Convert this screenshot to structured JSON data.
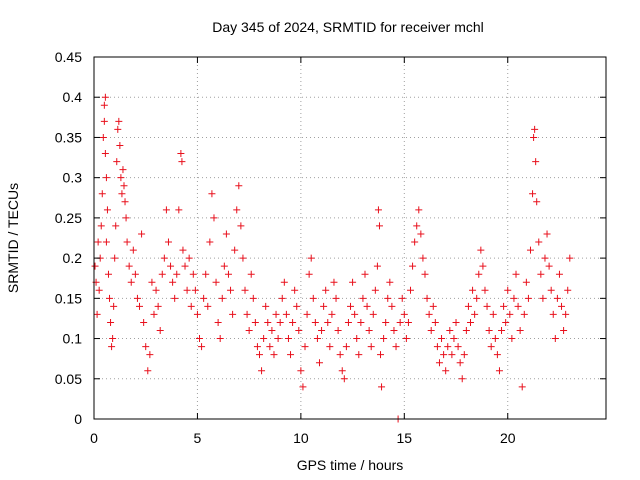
{
  "chart_data": {
    "type": "scatter",
    "title": "Day 345 of 2024, SRMTID for receiver mchl",
    "xlabel": "GPS time / hours",
    "ylabel": "SRMTID / TECUs",
    "xlim": [
      0,
      24.75
    ],
    "ylim": [
      0,
      0.45
    ],
    "xticks": [
      0,
      5,
      10,
      15,
      20
    ],
    "xtick_labels": [
      "0",
      "5",
      "10",
      "15",
      "20"
    ],
    "yticks": [
      0,
      0.05,
      0.1,
      0.15,
      0.2,
      0.25,
      0.3,
      0.35,
      0.4,
      0.45
    ],
    "ytick_labels": [
      "0",
      "0.05",
      "0.1",
      "0.15",
      "0.2",
      "0.25",
      "0.3",
      "0.35",
      "0.4",
      "0.45"
    ],
    "grid": true,
    "marker": "plus",
    "color": "#e8101c",
    "series": [
      {
        "name": "SRMTID",
        "points": [
          [
            0.05,
            0.19
          ],
          [
            0.1,
            0.17
          ],
          [
            0.15,
            0.13
          ],
          [
            0.2,
            0.22
          ],
          [
            0.25,
            0.16
          ],
          [
            0.3,
            0.2
          ],
          [
            0.35,
            0.24
          ],
          [
            0.4,
            0.28
          ],
          [
            0.45,
            0.35
          ],
          [
            0.5,
            0.37
          ],
          [
            0.5,
            0.39
          ],
          [
            0.55,
            0.4
          ],
          [
            0.55,
            0.33
          ],
          [
            0.6,
            0.3
          ],
          [
            0.6,
            0.22
          ],
          [
            0.65,
            0.26
          ],
          [
            0.7,
            0.18
          ],
          [
            0.75,
            0.15
          ],
          [
            0.8,
            0.12
          ],
          [
            0.85,
            0.09
          ],
          [
            0.9,
            0.1
          ],
          [
            0.95,
            0.14
          ],
          [
            1.0,
            0.2
          ],
          [
            1.05,
            0.24
          ],
          [
            1.1,
            0.32
          ],
          [
            1.15,
            0.36
          ],
          [
            1.2,
            0.37
          ],
          [
            1.25,
            0.34
          ],
          [
            1.3,
            0.3
          ],
          [
            1.35,
            0.28
          ],
          [
            1.4,
            0.31
          ],
          [
            1.45,
            0.29
          ],
          [
            1.5,
            0.27
          ],
          [
            1.55,
            0.25
          ],
          [
            1.6,
            0.22
          ],
          [
            1.7,
            0.19
          ],
          [
            1.8,
            0.17
          ],
          [
            1.9,
            0.21
          ],
          [
            2.0,
            0.18
          ],
          [
            2.1,
            0.15
          ],
          [
            2.2,
            0.14
          ],
          [
            2.3,
            0.23
          ],
          [
            2.4,
            0.12
          ],
          [
            2.5,
            0.09
          ],
          [
            2.6,
            0.06
          ],
          [
            2.7,
            0.08
          ],
          [
            2.8,
            0.17
          ],
          [
            2.9,
            0.13
          ],
          [
            3.0,
            0.16
          ],
          [
            3.1,
            0.14
          ],
          [
            3.2,
            0.11
          ],
          [
            3.3,
            0.18
          ],
          [
            3.4,
            0.2
          ],
          [
            3.5,
            0.26
          ],
          [
            3.6,
            0.22
          ],
          [
            3.7,
            0.19
          ],
          [
            3.8,
            0.17
          ],
          [
            3.9,
            0.15
          ],
          [
            4.0,
            0.18
          ],
          [
            4.1,
            0.26
          ],
          [
            4.2,
            0.33
          ],
          [
            4.25,
            0.32
          ],
          [
            4.3,
            0.21
          ],
          [
            4.4,
            0.19
          ],
          [
            4.5,
            0.16
          ],
          [
            4.6,
            0.2
          ],
          [
            4.7,
            0.14
          ],
          [
            4.8,
            0.18
          ],
          [
            4.9,
            0.16
          ],
          [
            5.0,
            0.13
          ],
          [
            5.1,
            0.1
          ],
          [
            5.2,
            0.09
          ],
          [
            5.3,
            0.15
          ],
          [
            5.4,
            0.18
          ],
          [
            5.5,
            0.14
          ],
          [
            5.6,
            0.22
          ],
          [
            5.7,
            0.28
          ],
          [
            5.8,
            0.25
          ],
          [
            5.9,
            0.17
          ],
          [
            6.0,
            0.12
          ],
          [
            6.1,
            0.1
          ],
          [
            6.2,
            0.15
          ],
          [
            6.3,
            0.19
          ],
          [
            6.4,
            0.23
          ],
          [
            6.5,
            0.18
          ],
          [
            6.6,
            0.16
          ],
          [
            6.7,
            0.13
          ],
          [
            6.8,
            0.21
          ],
          [
            6.9,
            0.26
          ],
          [
            7.0,
            0.29
          ],
          [
            7.1,
            0.24
          ],
          [
            7.2,
            0.2
          ],
          [
            7.3,
            0.16
          ],
          [
            7.4,
            0.13
          ],
          [
            7.5,
            0.11
          ],
          [
            7.6,
            0.18
          ],
          [
            7.7,
            0.15
          ],
          [
            7.8,
            0.12
          ],
          [
            7.9,
            0.09
          ],
          [
            8.0,
            0.08
          ],
          [
            8.1,
            0.06
          ],
          [
            8.2,
            0.1
          ],
          [
            8.3,
            0.14
          ],
          [
            8.4,
            0.12
          ],
          [
            8.5,
            0.09
          ],
          [
            8.6,
            0.11
          ],
          [
            8.7,
            0.08
          ],
          [
            8.8,
            0.13
          ],
          [
            8.9,
            0.1
          ],
          [
            9.0,
            0.12
          ],
          [
            9.1,
            0.15
          ],
          [
            9.2,
            0.17
          ],
          [
            9.3,
            0.13
          ],
          [
            9.4,
            0.1
          ],
          [
            9.5,
            0.08
          ],
          [
            9.6,
            0.12
          ],
          [
            9.7,
            0.16
          ],
          [
            9.8,
            0.14
          ],
          [
            9.9,
            0.11
          ],
          [
            10.0,
            0.06
          ],
          [
            10.1,
            0.04
          ],
          [
            10.2,
            0.09
          ],
          [
            10.3,
            0.13
          ],
          [
            10.4,
            0.18
          ],
          [
            10.5,
            0.2
          ],
          [
            10.6,
            0.15
          ],
          [
            10.7,
            0.12
          ],
          [
            10.8,
            0.1
          ],
          [
            10.9,
            0.07
          ],
          [
            11.0,
            0.11
          ],
          [
            11.1,
            0.14
          ],
          [
            11.2,
            0.16
          ],
          [
            11.3,
            0.12
          ],
          [
            11.4,
            0.09
          ],
          [
            11.5,
            0.13
          ],
          [
            11.6,
            0.17
          ],
          [
            11.7,
            0.15
          ],
          [
            11.8,
            0.11
          ],
          [
            11.9,
            0.08
          ],
          [
            12.0,
            0.06
          ],
          [
            12.1,
            0.05
          ],
          [
            12.2,
            0.09
          ],
          [
            12.3,
            0.12
          ],
          [
            12.4,
            0.14
          ],
          [
            12.5,
            0.17
          ],
          [
            12.6,
            0.13
          ],
          [
            12.7,
            0.1
          ],
          [
            12.8,
            0.08
          ],
          [
            12.9,
            0.12
          ],
          [
            13.0,
            0.15
          ],
          [
            13.1,
            0.18
          ],
          [
            13.2,
            0.14
          ],
          [
            13.3,
            0.11
          ],
          [
            13.4,
            0.09
          ],
          [
            13.5,
            0.13
          ],
          [
            13.6,
            0.16
          ],
          [
            13.7,
            0.19
          ],
          [
            13.75,
            0.26
          ],
          [
            13.8,
            0.24
          ],
          [
            13.85,
            0.08
          ],
          [
            13.9,
            0.04
          ],
          [
            14.0,
            0.1
          ],
          [
            14.1,
            0.12
          ],
          [
            14.2,
            0.15
          ],
          [
            14.3,
            0.17
          ],
          [
            14.4,
            0.14
          ],
          [
            14.5,
            0.11
          ],
          [
            14.6,
            0.09
          ],
          [
            14.7,
            0.0
          ],
          [
            14.8,
            0.12
          ],
          [
            14.9,
            0.15
          ],
          [
            15.0,
            0.13
          ],
          [
            15.1,
            0.1
          ],
          [
            15.2,
            0.12
          ],
          [
            15.3,
            0.16
          ],
          [
            15.4,
            0.19
          ],
          [
            15.5,
            0.22
          ],
          [
            15.6,
            0.24
          ],
          [
            15.7,
            0.26
          ],
          [
            15.8,
            0.23
          ],
          [
            15.9,
            0.2
          ],
          [
            16.0,
            0.18
          ],
          [
            16.1,
            0.15
          ],
          [
            16.2,
            0.13
          ],
          [
            16.3,
            0.11
          ],
          [
            16.4,
            0.14
          ],
          [
            16.5,
            0.12
          ],
          [
            16.6,
            0.09
          ],
          [
            16.7,
            0.07
          ],
          [
            16.8,
            0.1
          ],
          [
            16.9,
            0.08
          ],
          [
            17.0,
            0.06
          ],
          [
            17.1,
            0.09
          ],
          [
            17.2,
            0.11
          ],
          [
            17.3,
            0.08
          ],
          [
            17.4,
            0.1
          ],
          [
            17.5,
            0.12
          ],
          [
            17.6,
            0.09
          ],
          [
            17.7,
            0.07
          ],
          [
            17.8,
            0.05
          ],
          [
            17.9,
            0.08
          ],
          [
            18.0,
            0.11
          ],
          [
            18.1,
            0.14
          ],
          [
            18.2,
            0.12
          ],
          [
            18.3,
            0.16
          ],
          [
            18.4,
            0.13
          ],
          [
            18.5,
            0.15
          ],
          [
            18.6,
            0.18
          ],
          [
            18.7,
            0.21
          ],
          [
            18.8,
            0.19
          ],
          [
            18.9,
            0.16
          ],
          [
            19.0,
            0.14
          ],
          [
            19.1,
            0.11
          ],
          [
            19.2,
            0.09
          ],
          [
            19.3,
            0.13
          ],
          [
            19.4,
            0.1
          ],
          [
            19.5,
            0.08
          ],
          [
            19.6,
            0.06
          ],
          [
            19.7,
            0.11
          ],
          [
            19.8,
            0.14
          ],
          [
            19.9,
            0.12
          ],
          [
            20.0,
            0.16
          ],
          [
            20.1,
            0.13
          ],
          [
            20.2,
            0.1
          ],
          [
            20.3,
            0.15
          ],
          [
            20.4,
            0.18
          ],
          [
            20.5,
            0.14
          ],
          [
            20.6,
            0.11
          ],
          [
            20.7,
            0.04
          ],
          [
            20.8,
            0.13
          ],
          [
            20.9,
            0.17
          ],
          [
            21.0,
            0.15
          ],
          [
            21.1,
            0.21
          ],
          [
            21.2,
            0.28
          ],
          [
            21.25,
            0.35
          ],
          [
            21.3,
            0.36
          ],
          [
            21.35,
            0.32
          ],
          [
            21.4,
            0.27
          ],
          [
            21.5,
            0.22
          ],
          [
            21.6,
            0.18
          ],
          [
            21.7,
            0.15
          ],
          [
            21.8,
            0.2
          ],
          [
            21.9,
            0.23
          ],
          [
            22.0,
            0.19
          ],
          [
            22.1,
            0.16
          ],
          [
            22.2,
            0.13
          ],
          [
            22.3,
            0.1
          ],
          [
            22.4,
            0.15
          ],
          [
            22.5,
            0.18
          ],
          [
            22.6,
            0.14
          ],
          [
            22.7,
            0.11
          ],
          [
            22.8,
            0.13
          ],
          [
            22.9,
            0.16
          ],
          [
            23.0,
            0.2
          ]
        ]
      }
    ]
  }
}
